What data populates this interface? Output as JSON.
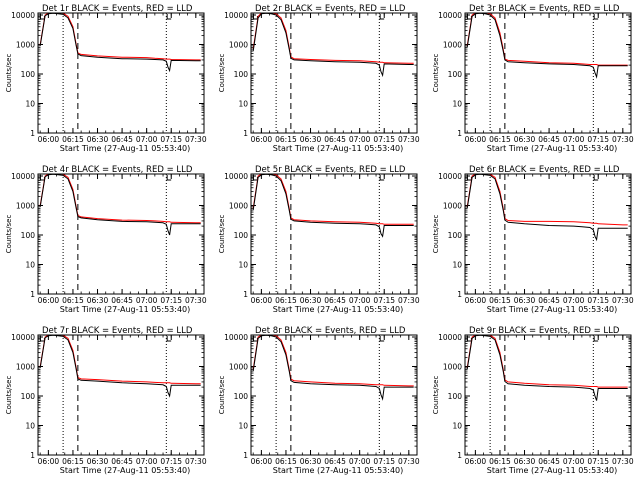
{
  "chart_data": [
    {
      "type": "line",
      "title": "Det 1r BLACK = Events, RED = LLD",
      "xlabel": "Start Time (27-Aug-11 05:53:40)",
      "ylabel": "Counts/sec",
      "xticks": [
        "06:00",
        "06:15",
        "06:30",
        "06:45",
        "07:00",
        "07:15",
        "07:30"
      ],
      "yticks": [
        "1",
        "10",
        "100",
        "1000",
        "10000"
      ],
      "ylim": [
        1,
        10000
      ],
      "yscale": "log",
      "events": {
        "name": "BLACK = Events",
        "color": "#000000"
      },
      "lld": {
        "name": "RED = LLD",
        "color": "#ff0000"
      },
      "vlines_dotted": [
        "06:09",
        "07:12"
      ],
      "vlines_dashed": [
        "06:18"
      ],
      "t": [
        "05:55",
        "05:58",
        "06:00",
        "06:03",
        "06:06",
        "06:09",
        "06:12",
        "06:15",
        "06:17",
        "06:18",
        "06:20",
        "06:30",
        "06:45",
        "07:00",
        "07:05",
        "07:10",
        "07:12",
        "07:13",
        "07:14",
        "07:15",
        "07:30",
        "07:33"
      ],
      "events_values": [
        900,
        9500,
        11000,
        11500,
        11000,
        10500,
        8000,
        3500,
        900,
        480,
        420,
        370,
        330,
        320,
        310,
        300,
        270,
        170,
        130,
        290,
        280,
        280
      ],
      "lld_values": [
        1000,
        10000,
        12000,
        12500,
        12000,
        11500,
        9000,
        4000,
        1000,
        520,
        460,
        410,
        370,
        360,
        340,
        330,
        320,
        320,
        320,
        310,
        300,
        300
      ]
    },
    {
      "type": "line",
      "title": "Det 2r BLACK = Events, RED = LLD",
      "xlabel": "Start Time (27-Aug-11 05:53:40)",
      "ylabel": "Counts/sec",
      "xticks": [
        "06:00",
        "06:15",
        "06:30",
        "06:45",
        "07:00",
        "07:15",
        "07:30"
      ],
      "yticks": [
        "1",
        "10",
        "100",
        "1000",
        "10000"
      ],
      "ylim": [
        1,
        10000
      ],
      "yscale": "log",
      "events": {
        "name": "BLACK = Events",
        "color": "#000000"
      },
      "lld": {
        "name": "RED = LLD",
        "color": "#ff0000"
      },
      "vlines_dotted": [
        "06:09",
        "07:12"
      ],
      "vlines_dashed": [
        "06:18"
      ],
      "t": [
        "05:55",
        "05:58",
        "06:00",
        "06:03",
        "06:06",
        "06:09",
        "06:12",
        "06:15",
        "06:17",
        "06:18",
        "06:20",
        "06:30",
        "06:45",
        "07:00",
        "07:05",
        "07:10",
        "07:12",
        "07:13",
        "07:14",
        "07:15",
        "07:30",
        "07:33"
      ],
      "events_values": [
        600,
        8000,
        11000,
        11500,
        11000,
        10000,
        7000,
        2500,
        700,
        340,
        300,
        280,
        260,
        250,
        240,
        230,
        200,
        120,
        90,
        220,
        210,
        210
      ],
      "lld_values": [
        700,
        9000,
        12000,
        12500,
        12000,
        11000,
        8000,
        3000,
        800,
        380,
        330,
        310,
        290,
        280,
        270,
        260,
        250,
        250,
        250,
        240,
        230,
        230
      ]
    },
    {
      "type": "line",
      "title": "Det 3r BLACK = Events, RED = LLD",
      "xlabel": "Start Time (27-Aug-11 05:53:40)",
      "ylabel": "Counts/sec",
      "xticks": [
        "06:00",
        "06:15",
        "06:30",
        "06:45",
        "07:00",
        "07:15",
        "07:30"
      ],
      "yticks": [
        "1",
        "10",
        "100",
        "1000",
        "10000"
      ],
      "ylim": [
        1,
        10000
      ],
      "yscale": "log",
      "events": {
        "name": "BLACK = Events",
        "color": "#000000"
      },
      "lld": {
        "name": "RED = LLD",
        "color": "#ff0000"
      },
      "vlines_dotted": [
        "06:09",
        "07:12"
      ],
      "vlines_dashed": [
        "06:18"
      ],
      "t": [
        "05:55",
        "05:58",
        "06:00",
        "06:03",
        "06:06",
        "06:09",
        "06:12",
        "06:15",
        "06:17",
        "06:18",
        "06:20",
        "06:30",
        "06:45",
        "07:00",
        "07:05",
        "07:10",
        "07:12",
        "07:13",
        "07:14",
        "07:15",
        "07:30",
        "07:33"
      ],
      "events_values": [
        800,
        9000,
        11000,
        11500,
        11000,
        10000,
        7000,
        2000,
        600,
        300,
        260,
        240,
        220,
        210,
        200,
        190,
        170,
        110,
        80,
        190,
        190,
        190
      ],
      "lld_values": [
        900,
        10000,
        12000,
        12500,
        12000,
        11000,
        8000,
        2500,
        700,
        320,
        290,
        270,
        240,
        230,
        220,
        210,
        210,
        210,
        210,
        200,
        200,
        200
      ]
    },
    {
      "type": "line",
      "title": "Det 4r BLACK = Events, RED = LLD",
      "xlabel": "Start Time (27-Aug-11 05:53:40)",
      "ylabel": "Counts/sec",
      "xticks": [
        "06:00",
        "06:15",
        "06:30",
        "06:45",
        "07:00",
        "07:15",
        "07:30"
      ],
      "yticks": [
        "1",
        "10",
        "100",
        "1000",
        "10000"
      ],
      "ylim": [
        1,
        10000
      ],
      "yscale": "log",
      "events": {
        "name": "BLACK = Events",
        "color": "#000000"
      },
      "lld": {
        "name": "RED = LLD",
        "color": "#ff0000"
      },
      "vlines_dotted": [
        "06:09",
        "07:12"
      ],
      "vlines_dashed": [
        "06:18"
      ],
      "t": [
        "05:55",
        "05:58",
        "06:00",
        "06:03",
        "06:06",
        "06:09",
        "06:12",
        "06:15",
        "06:17",
        "06:18",
        "06:20",
        "06:30",
        "06:45",
        "07:00",
        "07:05",
        "07:10",
        "07:12",
        "07:13",
        "07:14",
        "07:15",
        "07:30",
        "07:33"
      ],
      "events_values": [
        900,
        9500,
        11000,
        11500,
        11000,
        10500,
        8000,
        3000,
        800,
        420,
        380,
        330,
        290,
        280,
        270,
        260,
        230,
        140,
        100,
        240,
        240,
        240
      ],
      "lld_values": [
        1000,
        10000,
        12000,
        12500,
        12000,
        11500,
        9000,
        3500,
        900,
        460,
        410,
        360,
        320,
        310,
        300,
        290,
        280,
        280,
        280,
        270,
        260,
        260
      ]
    },
    {
      "type": "line",
      "title": "Det 5r BLACK = Events, RED = LLD",
      "xlabel": "Start Time (27-Aug-11 05:53:40)",
      "ylabel": "Counts/sec",
      "xticks": [
        "06:00",
        "06:15",
        "06:30",
        "06:45",
        "07:00",
        "07:15",
        "07:30"
      ],
      "yticks": [
        "1",
        "10",
        "100",
        "1000",
        "10000"
      ],
      "ylim": [
        1,
        10000
      ],
      "yscale": "log",
      "events": {
        "name": "BLACK = Events",
        "color": "#000000"
      },
      "lld": {
        "name": "RED = LLD",
        "color": "#ff0000"
      },
      "vlines_dotted": [
        "06:09",
        "07:12"
      ],
      "vlines_dashed": [
        "06:18"
      ],
      "t": [
        "05:55",
        "05:58",
        "06:00",
        "06:03",
        "06:06",
        "06:09",
        "06:12",
        "06:15",
        "06:17",
        "06:18",
        "06:20",
        "06:30",
        "06:45",
        "07:00",
        "07:05",
        "07:10",
        "07:12",
        "07:13",
        "07:14",
        "07:15",
        "07:30",
        "07:33"
      ],
      "events_values": [
        700,
        9000,
        11000,
        11500,
        11000,
        10000,
        7000,
        2500,
        700,
        340,
        300,
        270,
        250,
        240,
        230,
        220,
        190,
        110,
        90,
        210,
        210,
        210
      ],
      "lld_values": [
        800,
        10000,
        12000,
        12500,
        12000,
        11000,
        8000,
        3000,
        800,
        380,
        330,
        300,
        280,
        270,
        260,
        250,
        240,
        240,
        240,
        230,
        230,
        230
      ]
    },
    {
      "type": "line",
      "title": "Det 6r BLACK = Events, RED = LLD",
      "xlabel": "Start Time (27-Aug-11 05:53:40)",
      "ylabel": "Counts/sec",
      "xticks": [
        "06:00",
        "06:15",
        "06:30",
        "06:45",
        "07:00",
        "07:15",
        "07:30"
      ],
      "yticks": [
        "1",
        "10",
        "100",
        "1000",
        "10000"
      ],
      "ylim": [
        1,
        10000
      ],
      "yscale": "log",
      "events": {
        "name": "BLACK = Events",
        "color": "#000000"
      },
      "lld": {
        "name": "RED = LLD",
        "color": "#ff0000"
      },
      "vlines_dotted": [
        "06:09",
        "07:12"
      ],
      "vlines_dashed": [
        "06:18"
      ],
      "t": [
        "05:55",
        "05:58",
        "06:00",
        "06:03",
        "06:06",
        "06:09",
        "06:12",
        "06:15",
        "06:17",
        "06:18",
        "06:20",
        "06:30",
        "06:45",
        "07:00",
        "07:05",
        "07:10",
        "07:12",
        "07:13",
        "07:14",
        "07:15",
        "07:30",
        "07:33"
      ],
      "events_values": [
        800,
        9000,
        11000,
        11500,
        11000,
        10500,
        8000,
        2500,
        700,
        320,
        270,
        240,
        210,
        200,
        190,
        180,
        150,
        90,
        70,
        170,
        170,
        170
      ],
      "lld_values": [
        900,
        10000,
        12000,
        12500,
        12000,
        11500,
        9000,
        3000,
        800,
        360,
        310,
        290,
        290,
        280,
        270,
        260,
        250,
        250,
        250,
        240,
        220,
        220
      ]
    },
    {
      "type": "line",
      "title": "Det 7r BLACK = Events, RED = LLD",
      "xlabel": "Start Time (27-Aug-11 05:53:40)",
      "ylabel": "Counts/sec",
      "xticks": [
        "06:00",
        "06:15",
        "06:30",
        "06:45",
        "07:00",
        "07:15",
        "07:30"
      ],
      "yticks": [
        "1",
        "10",
        "100",
        "1000",
        "10000"
      ],
      "ylim": [
        1,
        10000
      ],
      "yscale": "log",
      "events": {
        "name": "BLACK = Events",
        "color": "#000000"
      },
      "lld": {
        "name": "RED = LLD",
        "color": "#ff0000"
      },
      "vlines_dotted": [
        "06:09",
        "07:12"
      ],
      "vlines_dashed": [
        "06:18"
      ],
      "t": [
        "05:55",
        "05:58",
        "06:00",
        "06:03",
        "06:06",
        "06:09",
        "06:12",
        "06:15",
        "06:17",
        "06:18",
        "06:20",
        "06:30",
        "06:45",
        "07:00",
        "07:05",
        "07:10",
        "07:12",
        "07:13",
        "07:14",
        "07:15",
        "07:30",
        "07:33"
      ],
      "events_values": [
        900,
        9500,
        11000,
        11500,
        11000,
        10500,
        8000,
        3000,
        800,
        380,
        340,
        320,
        280,
        260,
        250,
        240,
        210,
        130,
        100,
        230,
        230,
        230
      ],
      "lld_values": [
        1000,
        10000,
        12000,
        12500,
        12000,
        11500,
        9000,
        3500,
        900,
        420,
        380,
        360,
        320,
        300,
        290,
        280,
        280,
        280,
        280,
        270,
        260,
        260
      ]
    },
    {
      "type": "line",
      "title": "Det 8r BLACK = Events, RED = LLD",
      "xlabel": "Start Time (27-Aug-11 05:53:40)",
      "ylabel": "Counts/sec",
      "xticks": [
        "06:00",
        "06:15",
        "06:30",
        "06:45",
        "07:00",
        "07:15",
        "07:30"
      ],
      "yticks": [
        "1",
        "10",
        "100",
        "1000",
        "10000"
      ],
      "ylim": [
        1,
        10000
      ],
      "yscale": "log",
      "events": {
        "name": "BLACK = Events",
        "color": "#000000"
      },
      "lld": {
        "name": "RED = LLD",
        "color": "#ff0000"
      },
      "vlines_dotted": [
        "06:09",
        "07:12"
      ],
      "vlines_dashed": [
        "06:18"
      ],
      "t": [
        "05:55",
        "05:58",
        "06:00",
        "06:03",
        "06:06",
        "06:09",
        "06:12",
        "06:15",
        "06:17",
        "06:18",
        "06:20",
        "06:30",
        "06:45",
        "07:00",
        "07:05",
        "07:10",
        "07:12",
        "07:13",
        "07:14",
        "07:15",
        "07:30",
        "07:33"
      ],
      "events_values": [
        700,
        9000,
        11000,
        11500,
        11000,
        10000,
        7000,
        2500,
        700,
        330,
        290,
        260,
        240,
        230,
        220,
        210,
        180,
        110,
        80,
        200,
        200,
        200
      ],
      "lld_values": [
        800,
        10000,
        12000,
        12500,
        12000,
        11000,
        8000,
        3000,
        800,
        370,
        330,
        300,
        270,
        260,
        250,
        240,
        240,
        240,
        240,
        230,
        220,
        220
      ]
    },
    {
      "type": "line",
      "title": "Det 9r BLACK = Events, RED = LLD",
      "xlabel": "Start Time (27-Aug-11 05:53:40)",
      "ylabel": "Counts/sec",
      "xticks": [
        "06:00",
        "06:15",
        "06:30",
        "06:45",
        "07:00",
        "07:15",
        "07:30"
      ],
      "yticks": [
        "1",
        "10",
        "100",
        "1000",
        "10000"
      ],
      "ylim": [
        1,
        10000
      ],
      "yscale": "log",
      "events": {
        "name": "BLACK = Events",
        "color": "#000000"
      },
      "lld": {
        "name": "RED = LLD",
        "color": "#ff0000"
      },
      "vlines_dotted": [
        "06:09",
        "07:12"
      ],
      "vlines_dashed": [
        "06:18"
      ],
      "t": [
        "05:55",
        "05:58",
        "06:00",
        "06:03",
        "06:06",
        "06:09",
        "06:12",
        "06:15",
        "06:17",
        "06:18",
        "06:20",
        "06:30",
        "06:45",
        "07:00",
        "07:05",
        "07:10",
        "07:12",
        "07:13",
        "07:14",
        "07:15",
        "07:30",
        "07:33"
      ],
      "events_values": [
        800,
        9000,
        11000,
        11500,
        11000,
        10500,
        8000,
        2500,
        700,
        310,
        260,
        230,
        210,
        200,
        190,
        180,
        160,
        100,
        70,
        180,
        180,
        180
      ],
      "lld_values": [
        900,
        10000,
        12000,
        12500,
        12000,
        11500,
        9000,
        3000,
        800,
        350,
        300,
        270,
        240,
        230,
        220,
        210,
        210,
        210,
        210,
        200,
        200,
        200
      ]
    }
  ]
}
